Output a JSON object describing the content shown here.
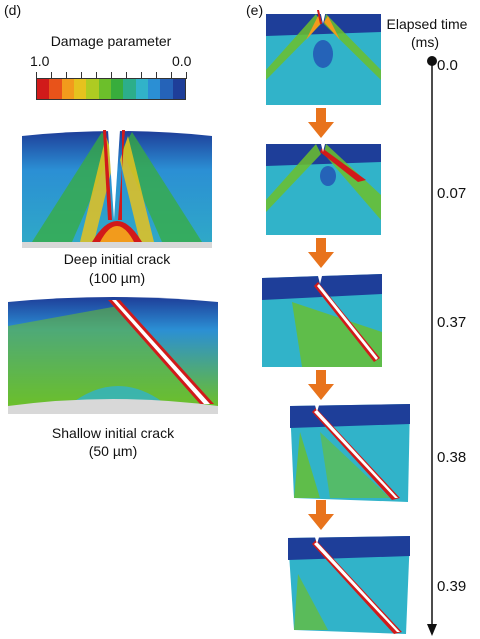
{
  "panel_d": {
    "label": "(d)",
    "legend": {
      "title": "Damage parameter",
      "min_label": "1.0",
      "max_label": "0.0",
      "colors": [
        "#d11a1a",
        "#e8531a",
        "#f29b1c",
        "#e6c21e",
        "#aecb22",
        "#6cbf2b",
        "#38ad3c",
        "#2cae8a",
        "#31b3c9",
        "#2b8fd4",
        "#2563b8",
        "#1e3e99"
      ]
    },
    "case_deep": {
      "line1": "Deep initial crack",
      "line2": "(100 µm)"
    },
    "case_shallow": {
      "line1": "Shallow initial crack",
      "line2": "(50 µm)"
    }
  },
  "panel_e": {
    "label": "(e)",
    "time_header_1": "Elapsed time",
    "time_header_2": "(ms)",
    "times": [
      "0.0",
      "0.07",
      "0.37",
      "0.38",
      "0.39"
    ],
    "arrow_color": "#e8731c"
  }
}
